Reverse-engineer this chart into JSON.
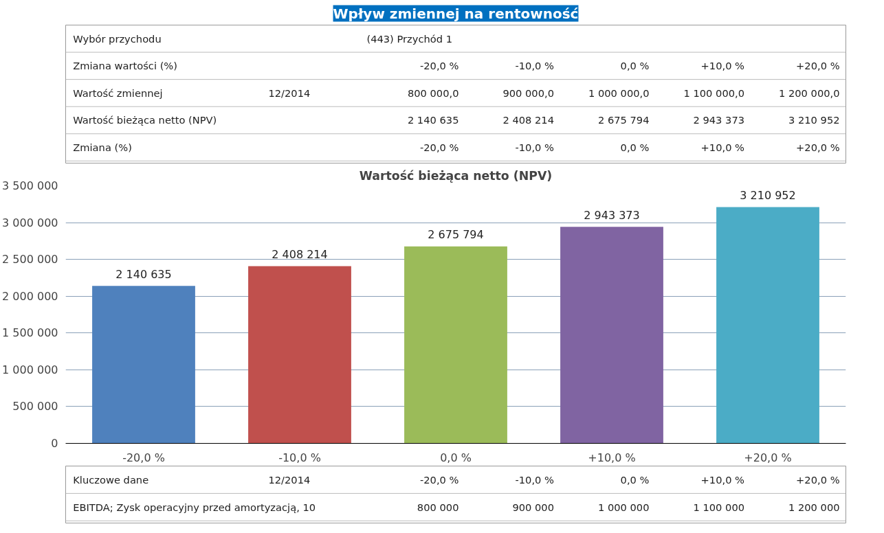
{
  "chart_data": {
    "type": "bar",
    "title": "Wpływ zmiennej na rentowność",
    "subtitle": "Wartość bieżąca netto (NPV)",
    "categories": [
      "-20,0 %",
      "-10,0 %",
      "0,0 %",
      "+10,0 %",
      "+20,0 %"
    ],
    "values": [
      2140635,
      2408214,
      2675794,
      2943373,
      3210952
    ],
    "colors": [
      "#4f81bd",
      "#c0504d",
      "#9bbb59",
      "#8064a2",
      "#4bacc6"
    ],
    "value_labels": [
      "2 140 635",
      "2 408 214",
      "2 675 794",
      "2 943 373",
      "3 210 952"
    ],
    "ylim": [
      0,
      3500000
    ],
    "yticks": [
      {
        "value": 0,
        "label": "0"
      },
      {
        "value": 500000,
        "label": "500 000"
      },
      {
        "value": 1000000,
        "label": "1 000 000"
      },
      {
        "value": 1500000,
        "label": "1 500 000"
      },
      {
        "value": 2000000,
        "label": "2 000 000"
      },
      {
        "value": 2500000,
        "label": "2 500 000"
      },
      {
        "value": 3000000,
        "label": "3 000 000"
      },
      {
        "value": 3500000,
        "label": "3 500 000"
      }
    ],
    "grid": "y",
    "annotations": [
      "Wybór przychodu",
      null,
      "(443) Przychód 1",
      null,
      null,
      null,
      null,
      "Zmiana wartości (%)",
      null,
      "-20,0 %",
      "-10,0 %",
      "0,0 %",
      "+10,0 %",
      "+20,0 %",
      "Wartość zmiennej",
      "12/2014",
      "800 000,0",
      "900 000,0",
      "1 000 000,0",
      "1 100 000,0",
      "1 200 000,0",
      "Wartość bieżąca netto (NPV)",
      null,
      "2 140 635",
      "2 408 214",
      "2 675 794",
      "2 943 373",
      "3 210 952",
      "Zmiana (%)",
      null,
      "-20,0 %",
      "-10,0 %",
      "0,0 %",
      "+10,0 %",
      "+20,0 %",
      "Kluczowe dane",
      "12/2014",
      "-20,0 %",
      "-10,0 %",
      "0,0 %",
      "+10,0 %",
      "+20,0 %",
      "EBITDA; Zysk operacyjny przed amortyzacją, 10",
      null,
      "800 000",
      "900 000",
      "1 000 000",
      "1 100 000",
      "1 200 000"
    ]
  }
}
